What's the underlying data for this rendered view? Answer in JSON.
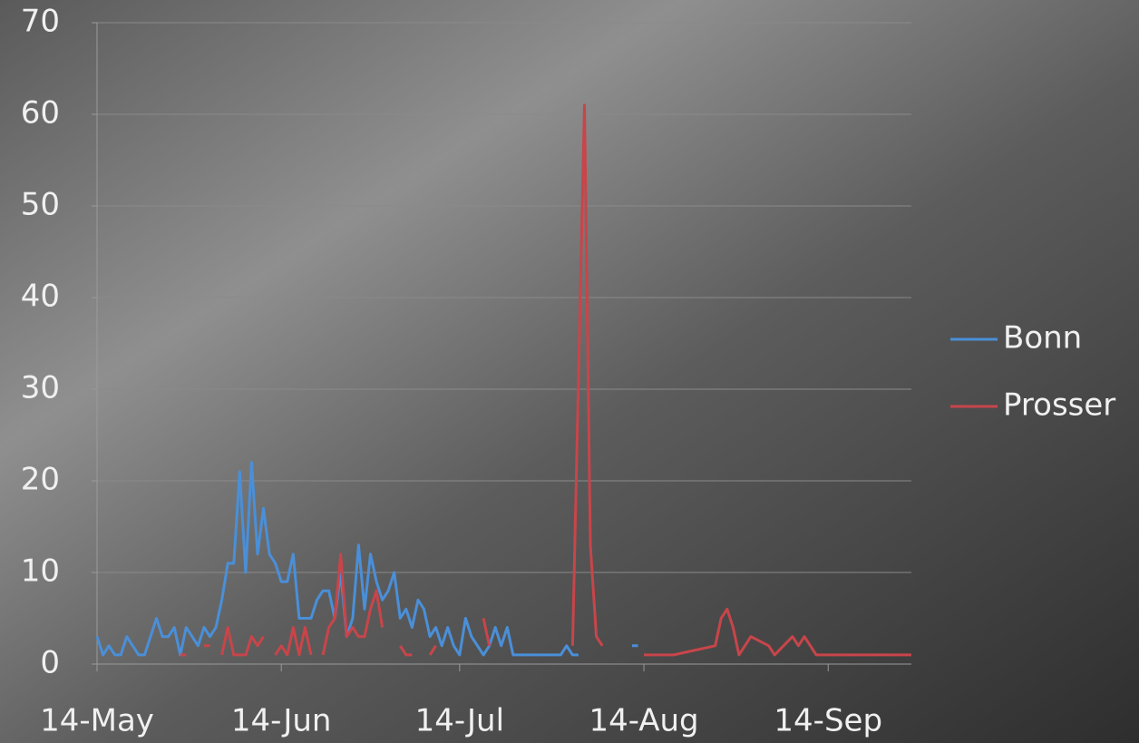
{
  "chart_data": {
    "type": "line",
    "xlim": [
      "14-May",
      "28-Sep"
    ],
    "xticks": [
      "14-May",
      "14-Jun",
      "14-Jul",
      "14-Aug",
      "14-Sep"
    ],
    "ylim": [
      0,
      70
    ],
    "yticks": [
      0,
      10,
      20,
      30,
      40,
      50,
      60,
      70
    ],
    "grid": true,
    "legend": "right",
    "series": [
      {
        "name": "Bonn",
        "color": "#4a8fd8",
        "x": [
          "14-May",
          "15-May",
          "16-May",
          "17-May",
          "18-May",
          "19-May",
          "20-May",
          "21-May",
          "22-May",
          "23-May",
          "24-May",
          "25-May",
          "26-May",
          "27-May",
          "28-May",
          "29-May",
          "30-May",
          "31-May",
          "1-Jun",
          "2-Jun",
          "3-Jun",
          "4-Jun",
          "5-Jun",
          "6-Jun",
          "7-Jun",
          "8-Jun",
          "9-Jun",
          "10-Jun",
          "11-Jun",
          "12-Jun",
          "13-Jun",
          "14-Jun",
          "15-Jun",
          "16-Jun",
          "17-Jun",
          "18-Jun",
          "19-Jun",
          "20-Jun",
          "21-Jun",
          "22-Jun",
          "23-Jun",
          "24-Jun",
          "25-Jun",
          "26-Jun",
          "27-Jun",
          "28-Jun",
          "29-Jun",
          "30-Jun",
          "1-Jul",
          "2-Jul",
          "3-Jul",
          "4-Jul",
          "5-Jul",
          "6-Jul",
          "7-Jul",
          "8-Jul",
          "9-Jul",
          "10-Jul",
          "11-Jul",
          "12-Jul",
          "13-Jul",
          "14-Jul",
          "15-Jul",
          "16-Jul",
          "17-Jul",
          "18-Jul",
          "19-Jul",
          "20-Jul",
          "21-Jul",
          "22-Jul",
          "23-Jul",
          "24-Jul",
          "25-Jul",
          "26-Jul",
          "27-Jul",
          "28-Jul",
          "29-Jul",
          "30-Jul",
          "31-Jul",
          "1-Aug",
          "2-Aug",
          "3-Aug",
          "7-Aug",
          "12-Aug",
          "13-Aug"
        ],
        "values": [
          3,
          1,
          2,
          1,
          1,
          3,
          2,
          1,
          1,
          3,
          5,
          3,
          3,
          4,
          1,
          4,
          3,
          2,
          4,
          3,
          4,
          7,
          11,
          11,
          21,
          10,
          22,
          12,
          17,
          12,
          11,
          9,
          9,
          12,
          5,
          5,
          5,
          7,
          8,
          8,
          5,
          10,
          3,
          5,
          13,
          6,
          12,
          9,
          7,
          8,
          10,
          5,
          6,
          4,
          7,
          6,
          3,
          4,
          2,
          4,
          2,
          1,
          5,
          3,
          2,
          1,
          2,
          4,
          2,
          4,
          1,
          1,
          1,
          1,
          1,
          1,
          1,
          1,
          1,
          2,
          1,
          1,
          null,
          2,
          2
        ]
      },
      {
        "name": "Prosser",
        "color": "#c8454a",
        "x": [
          "28-May",
          "29-May",
          "30-May",
          "1-Jun",
          "2-Jun",
          "3-Jun",
          "4-Jun",
          "5-Jun",
          "6-Jun",
          "7-Jun",
          "8-Jun",
          "9-Jun",
          "10-Jun",
          "11-Jun",
          "12-Jun",
          "13-Jun",
          "14-Jun",
          "15-Jun",
          "16-Jun",
          "17-Jun",
          "18-Jun",
          "19-Jun",
          "20-Jun",
          "21-Jun",
          "22-Jun",
          "23-Jun",
          "24-Jun",
          "25-Jun",
          "26-Jun",
          "27-Jun",
          "28-Jun",
          "29-Jun",
          "30-Jun",
          "1-Jul",
          "2-Jul",
          "4-Jul",
          "5-Jul",
          "6-Jul",
          "7-Jul",
          "9-Jul",
          "10-Jul",
          "11-Jul",
          "18-Jul",
          "19-Jul",
          "20-Jul",
          "2-Aug",
          "4-Aug",
          "5-Aug",
          "6-Aug",
          "7-Aug",
          "10-Aug",
          "14-Aug",
          "19-Aug",
          "26-Aug",
          "27-Aug",
          "28-Aug",
          "29-Aug",
          "30-Aug",
          "1-Sep",
          "4-Sep",
          "5-Sep",
          "8-Sep",
          "9-Sep",
          "10-Sep",
          "12-Sep",
          "28-Sep"
        ],
        "values": [
          1,
          1,
          null,
          2,
          2,
          null,
          1,
          4,
          1,
          1,
          1,
          3,
          2,
          3,
          null,
          1,
          2,
          1,
          4,
          1,
          4,
          1,
          null,
          1,
          4,
          5,
          12,
          3,
          4,
          3,
          3,
          6,
          8,
          4,
          null,
          2,
          1,
          1,
          null,
          1,
          2,
          null,
          5,
          2,
          null,
          2,
          61,
          13,
          3,
          2,
          null,
          1,
          1,
          2,
          5,
          6,
          4,
          1,
          3,
          2,
          1,
          3,
          2,
          3,
          1,
          1
        ]
      }
    ]
  }
}
